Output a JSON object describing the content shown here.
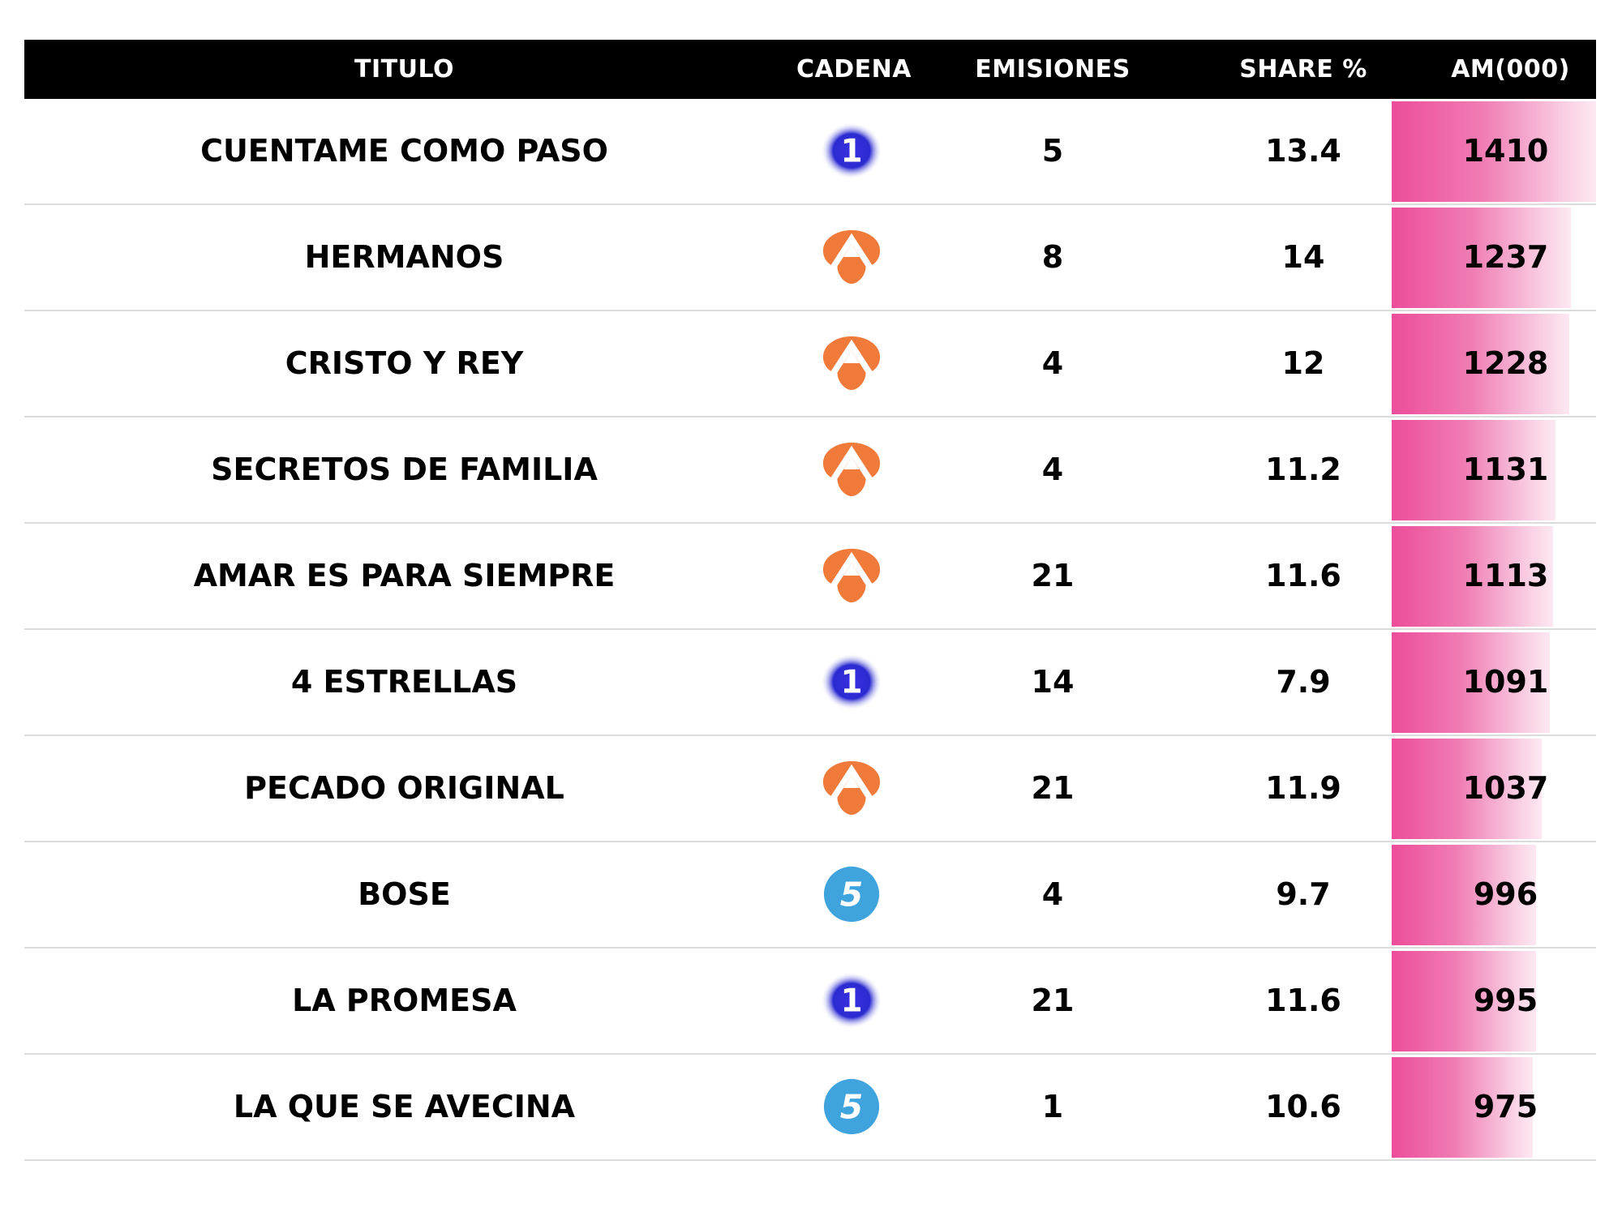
{
  "chart_data": {
    "type": "table",
    "columns": [
      "TITULO",
      "CADENA",
      "EMISIONES",
      "SHARE %",
      "AM(000)"
    ],
    "rows": [
      {
        "titulo": "CUENTAME COMO PASO",
        "cadena": "la1",
        "emisiones": 5,
        "share": "13.4",
        "am": 1410
      },
      {
        "titulo": "HERMANOS",
        "cadena": "antena3",
        "emisiones": 8,
        "share": "14",
        "am": 1237
      },
      {
        "titulo": "CRISTO Y REY",
        "cadena": "antena3",
        "emisiones": 4,
        "share": "12",
        "am": 1228
      },
      {
        "titulo": "SECRETOS DE FAMILIA",
        "cadena": "antena3",
        "emisiones": 4,
        "share": "11.2",
        "am": 1131
      },
      {
        "titulo": "AMAR ES PARA SIEMPRE",
        "cadena": "antena3",
        "emisiones": 21,
        "share": "11.6",
        "am": 1113
      },
      {
        "titulo": "4 ESTRELLAS",
        "cadena": "la1",
        "emisiones": 14,
        "share": "7.9",
        "am": 1091
      },
      {
        "titulo": "PECADO ORIGINAL",
        "cadena": "antena3",
        "emisiones": 21,
        "share": "11.9",
        "am": 1037
      },
      {
        "titulo": "BOSE",
        "cadena": "telecinco",
        "emisiones": 4,
        "share": "9.7",
        "am": 996
      },
      {
        "titulo": "LA PROMESA",
        "cadena": "la1",
        "emisiones": 21,
        "share": "11.6",
        "am": 995
      },
      {
        "titulo": "LA QUE SE AVECINA",
        "cadena": "telecinco",
        "emisiones": 1,
        "share": "10.6",
        "am": 975
      }
    ],
    "am_bar_max": 1410
  },
  "colors": {
    "header_bg": "#000000",
    "bar_start": "#ec4d9a",
    "bar_end": "#fde8f2",
    "la1": "#2b2bd1",
    "antena3": "#ef7a3a",
    "telecinco": "#3fa3dd"
  },
  "icons": {
    "la1": "la1-logo-icon",
    "antena3": "antena3-logo-icon",
    "telecinco": "telecinco-logo-icon"
  }
}
